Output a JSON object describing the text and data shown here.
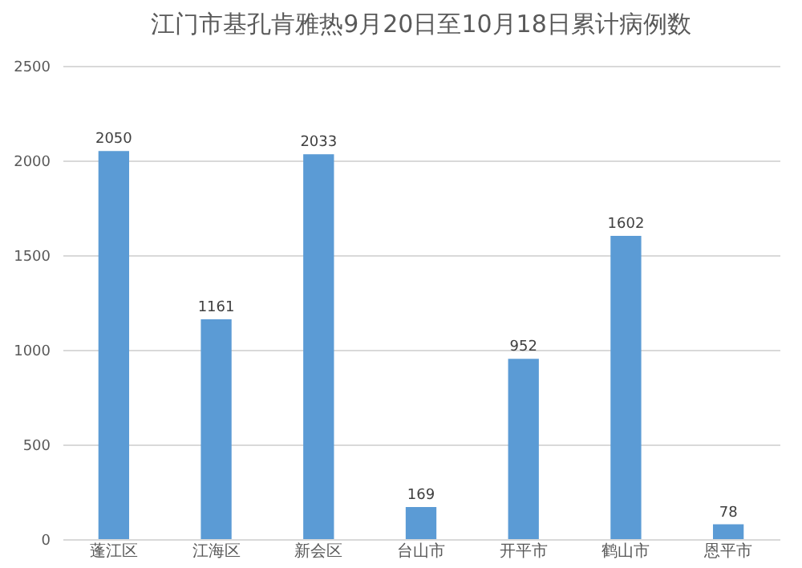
{
  "chart_data": {
    "type": "bar",
    "title": "江门市基孔肯雅热9月20日至10月18日累计病例数",
    "categories": [
      "蓬江区",
      "江海区",
      "新会区",
      "台山市",
      "开平市",
      "鹤山市",
      "恩平市"
    ],
    "values": [
      2050,
      1161,
      2033,
      169,
      952,
      1602,
      78
    ],
    "color": "#5b9bd5",
    "ylim": [
      0,
      2500
    ],
    "yticks": [
      0,
      500,
      1000,
      1500,
      2000,
      2500
    ],
    "grid": "y",
    "data_labels": true
  }
}
